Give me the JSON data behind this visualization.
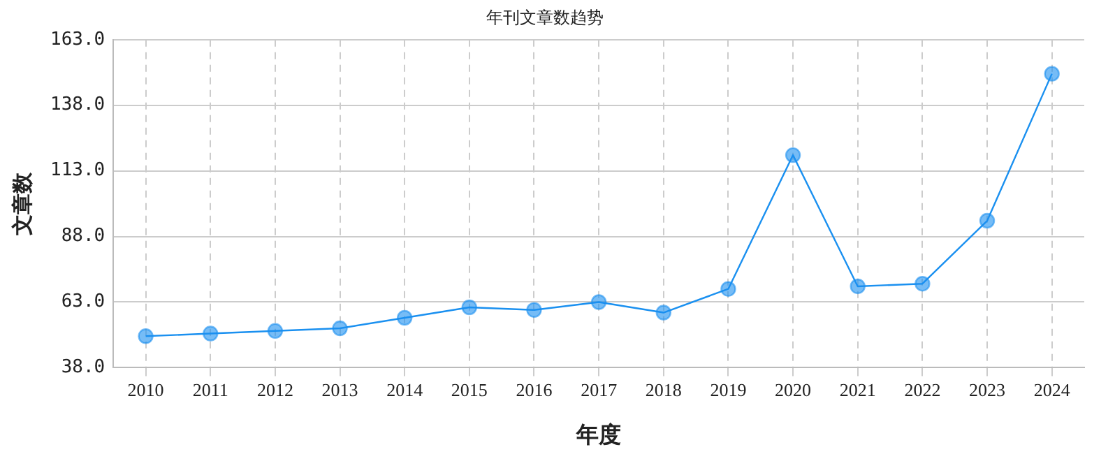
{
  "chart_data": {
    "type": "line",
    "title": "年刊文章数趋势",
    "xlabel": "年度",
    "ylabel": "文章数",
    "categories": [
      "2010",
      "2011",
      "2012",
      "2013",
      "2014",
      "2015",
      "2016",
      "2017",
      "2018",
      "2019",
      "2020",
      "2021",
      "2022",
      "2023",
      "2024"
    ],
    "series": [
      {
        "color": "#1a90f0",
        "values": [
          50,
          51,
          52,
          53,
          57,
          61,
          60,
          63,
          59,
          68,
          119,
          69,
          70,
          94,
          150
        ]
      }
    ],
    "ylim": [
      38,
      163
    ],
    "yticks": [
      {
        "value": 38,
        "label": "38.0"
      },
      {
        "value": 63,
        "label": "63.0"
      },
      {
        "value": 88,
        "label": "88.0"
      },
      {
        "value": 113,
        "label": "113.0"
      },
      {
        "value": 138,
        "label": "138.0"
      },
      {
        "value": 163,
        "label": "163.0"
      }
    ],
    "grid": true,
    "legend": false,
    "marker": "circle",
    "line_style": "solid"
  }
}
